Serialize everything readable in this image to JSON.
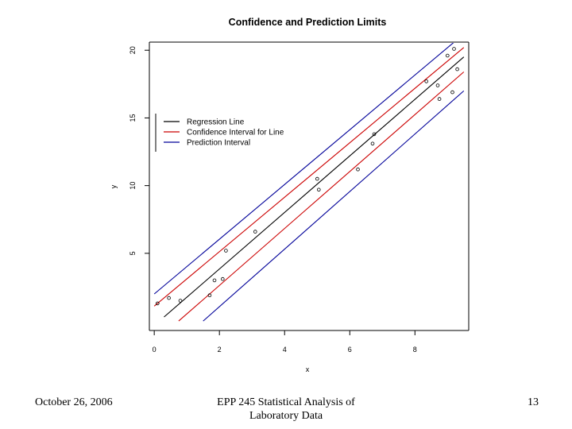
{
  "slide": {
    "footer_left": "October 26, 2006",
    "footer_center_line1": "EPP 245 Statistical Analysis of",
    "footer_center_line2": "Laboratory Data",
    "footer_right": "13"
  },
  "chart_data": {
    "type": "scatter",
    "title": "Confidence and Prediction Limits",
    "xlabel": "x",
    "ylabel": "y",
    "xlim": [
      -0.15,
      9.65
    ],
    "ylim": [
      -0.7,
      20.6
    ],
    "xticks": [
      0,
      2,
      4,
      6,
      8
    ],
    "yticks": [
      5,
      10,
      15,
      20
    ],
    "grid": false,
    "legend_position": "upper-left",
    "points": {
      "x": [
        0.1,
        0.45,
        0.8,
        1.7,
        1.85,
        2.1,
        2.2,
        3.1,
        5.0,
        5.05,
        6.25,
        6.7,
        6.75,
        8.35,
        8.7,
        8.75,
        9.0,
        9.15,
        9.2,
        9.3
      ],
      "y": [
        1.3,
        1.7,
        1.5,
        1.9,
        3.0,
        3.1,
        5.2,
        6.6,
        10.5,
        9.7,
        11.2,
        13.1,
        13.8,
        17.7,
        17.4,
        16.4,
        19.6,
        16.9,
        20.1,
        18.6
      ]
    },
    "series": [
      {
        "name": "Regression Line",
        "color": "#000000",
        "style": "line",
        "x": [
          0.3,
          9.5
        ],
        "y": [
          0.3,
          19.5
        ]
      },
      {
        "name": "Confidence Interval for Line",
        "color": "#cc0000",
        "style": "line",
        "x": [
          0.0,
          9.5
        ],
        "y": [
          1.1,
          20.2
        ]
      },
      {
        "name": "Confidence Interval for Line",
        "color": "#cc0000",
        "style": "line",
        "x": [
          0.75,
          9.5
        ],
        "y": [
          0.0,
          18.4
        ]
      },
      {
        "name": "Prediction Interval",
        "color": "#000099",
        "style": "line",
        "x": [
          0.0,
          9.5
        ],
        "y": [
          2.0,
          21.2
        ]
      },
      {
        "name": "Prediction Interval",
        "color": "#000099",
        "style": "line",
        "x": [
          1.5,
          9.5
        ],
        "y": [
          0.0,
          17.0
        ]
      }
    ],
    "legend": [
      {
        "label": "Regression Line",
        "color": "#000000"
      },
      {
        "label": "Confidence Interval for Line",
        "color": "#cc0000"
      },
      {
        "label": "Prediction Interval",
        "color": "#000099"
      }
    ]
  }
}
